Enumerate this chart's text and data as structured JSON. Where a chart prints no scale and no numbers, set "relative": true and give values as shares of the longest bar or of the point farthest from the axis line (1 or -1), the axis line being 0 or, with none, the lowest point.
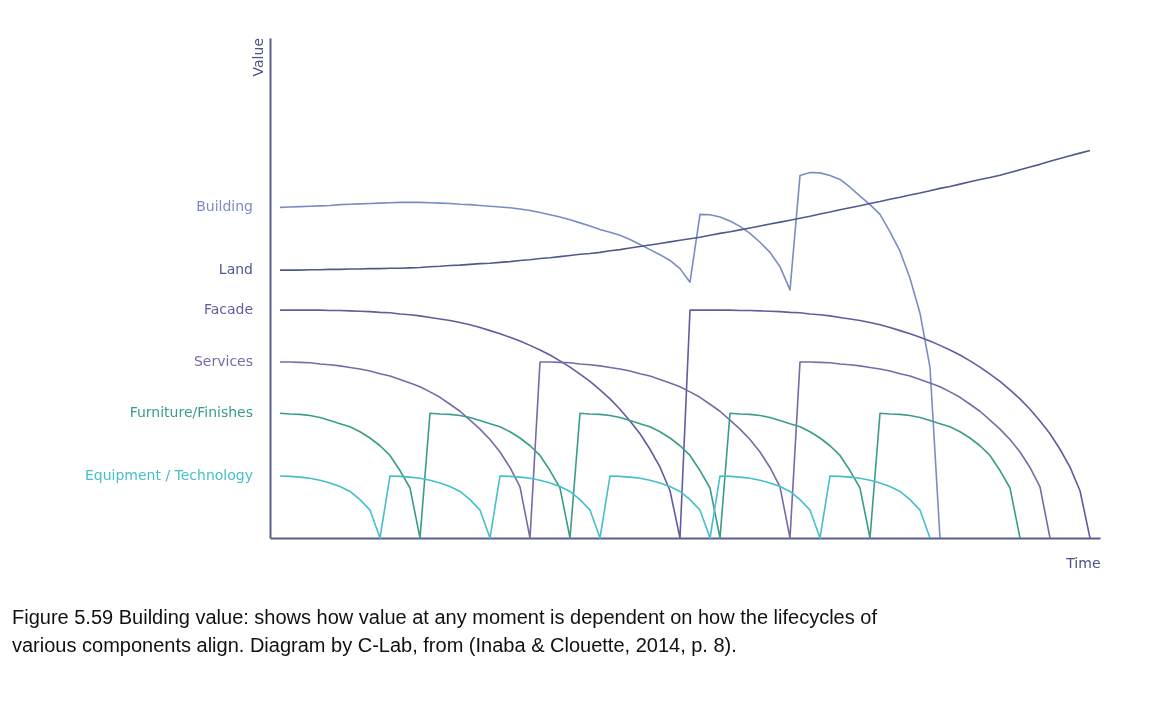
{
  "chart_data": {
    "type": "line",
    "relative": true,
    "xlabel": "Time",
    "categories": [
      null,
      null,
      null,
      null,
      null,
      null,
      null,
      null,
      null,
      null,
      null,
      null,
      null,
      null,
      null,
      null,
      null,
      null,
      null,
      null,
      null,
      null,
      null,
      null,
      null,
      null,
      null,
      null,
      null,
      null,
      null,
      null,
      null,
      null,
      null,
      null,
      null,
      null,
      null,
      null,
      null,
      null,
      null,
      null,
      null,
      null,
      null,
      null,
      null,
      null,
      null,
      null,
      null,
      null,
      null,
      null,
      null,
      null,
      null,
      null,
      null,
      null,
      null,
      null,
      null,
      null,
      null,
      null,
      null,
      null,
      null,
      null,
      null,
      null,
      null,
      null,
      null,
      null,
      null,
      null,
      null,
      null
    ],
    "series": [
      {
        "name": "Building",
        "color": "#7a8cc6",
        "values": [
          0.853,
          0.854,
          0.855,
          0.856,
          0.857,
          0.858,
          0.86,
          0.861,
          0.862,
          0.863,
          0.864,
          0.865,
          0.866,
          0.866,
          0.866,
          0.865,
          0.864,
          0.863,
          0.861,
          0.86,
          0.858,
          0.856,
          0.854,
          0.852,
          0.849,
          0.845,
          0.84,
          0.834,
          0.828,
          0.821,
          0.813,
          0.805,
          0.796,
          0.789,
          0.781,
          0.77,
          0.757,
          0.744,
          0.731,
          0.716,
          0.695,
          0.66,
          0.835,
          0.834,
          0.828,
          0.818,
          0.804,
          0.786,
          0.763,
          0.737,
          0.7,
          0.64,
          0.935,
          0.943,
          0.942,
          0.935,
          0.925,
          0.905,
          0.882,
          0.86,
          0.835,
          0.79,
          0.74,
          0.67,
          0.58,
          0.44,
          0,
          null,
          null,
          null,
          null,
          null,
          null,
          null,
          null,
          null,
          null,
          null,
          null,
          null,
          null,
          null
        ]
      },
      {
        "name": "Land",
        "color": "#4f5a8c",
        "values": [
          0.691,
          0.691,
          0.691,
          0.692,
          0.692,
          0.693,
          0.693,
          0.694,
          0.694,
          0.695,
          0.695,
          0.696,
          0.696,
          0.697,
          0.698,
          0.7,
          0.701,
          0.703,
          0.704,
          0.706,
          0.708,
          0.709,
          0.711,
          0.713,
          0.716,
          0.718,
          0.721,
          0.723,
          0.726,
          0.729,
          0.732,
          0.734,
          0.737,
          0.741,
          0.744,
          0.748,
          0.752,
          0.756,
          0.76,
          0.764,
          0.768,
          0.772,
          0.776,
          0.781,
          0.786,
          0.79,
          0.795,
          0.8,
          0.805,
          0.81,
          0.815,
          0.82,
          0.825,
          0.83,
          0.836,
          0.841,
          0.847,
          0.852,
          0.857,
          0.863,
          0.868,
          0.874,
          0.879,
          0.885,
          0.89,
          0.896,
          0.902,
          0.907,
          0.913,
          0.919,
          0.925,
          0.93,
          0.936,
          0.943,
          0.95,
          0.957,
          0.964,
          0.972,
          0.979,
          0.986,
          0.993,
          1.0
        ]
      },
      {
        "name": "Facade",
        "color": "#665a9e",
        "values": [
          0.588,
          0.588,
          0.588,
          0.588,
          0.588,
          0.587,
          0.587,
          0.586,
          0.585,
          0.584,
          0.582,
          0.581,
          0.578,
          0.576,
          0.573,
          0.569,
          0.565,
          0.561,
          0.556,
          0.55,
          0.543,
          0.535,
          0.527,
          0.518,
          0.508,
          0.497,
          0.485,
          0.472,
          0.457,
          0.441,
          0.423,
          0.404,
          0.382,
          0.359,
          0.332,
          0.302,
          0.269,
          0.229,
          0.183,
          0.122,
          0,
          0.588,
          0.588,
          0.588,
          0.588,
          0.588,
          0.587,
          0.587,
          0.586,
          0.585,
          0.584,
          0.582,
          0.581,
          0.578,
          0.576,
          0.573,
          0.569,
          0.565,
          0.561,
          0.556,
          0.55,
          0.543,
          0.535,
          0.527,
          0.518,
          0.508,
          0.497,
          0.485,
          0.472,
          0.457,
          0.441,
          0.423,
          0.404,
          0.382,
          0.359,
          0.332,
          0.302,
          0.269,
          0.229,
          0.183,
          0.122,
          0
        ]
      },
      {
        "name": "Services",
        "color": "#7b68a8",
        "values": [
          0.454,
          0.454,
          0.453,
          0.452,
          0.449,
          0.447,
          0.444,
          0.44,
          0.436,
          0.431,
          0.424,
          0.418,
          0.409,
          0.4,
          0.39,
          0.377,
          0.363,
          0.345,
          0.327,
          0.304,
          0.281,
          0.254,
          0.222,
          0.182,
          0.132,
          0,
          0.454,
          0.454,
          0.453,
          0.452,
          0.449,
          0.447,
          0.444,
          0.44,
          0.436,
          0.431,
          0.424,
          0.418,
          0.409,
          0.4,
          0.39,
          0.377,
          0.363,
          0.345,
          0.327,
          0.304,
          0.281,
          0.254,
          0.222,
          0.182,
          0.132,
          0,
          0.454,
          0.454,
          0.453,
          0.452,
          0.449,
          0.447,
          0.444,
          0.44,
          0.436,
          0.431,
          0.424,
          0.418,
          0.409,
          0.4,
          0.39,
          0.377,
          0.363,
          0.345,
          0.327,
          0.304,
          0.281,
          0.254,
          0.222,
          0.182,
          0.132,
          0,
          null,
          null,
          null,
          null
        ]
      },
      {
        "name": "Furniture/Finishes",
        "color": "#3a9c8a",
        "values": [
          0.322,
          0.32,
          0.319,
          0.316,
          0.311,
          0.303,
          0.295,
          0.287,
          0.274,
          0.258,
          0.238,
          0.213,
          0.174,
          0.129,
          0,
          0.322,
          0.32,
          0.319,
          0.316,
          0.311,
          0.303,
          0.295,
          0.287,
          0.274,
          0.258,
          0.238,
          0.213,
          0.174,
          0.129,
          0,
          0.322,
          0.32,
          0.319,
          0.316,
          0.311,
          0.303,
          0.295,
          0.287,
          0.274,
          0.258,
          0.238,
          0.213,
          0.174,
          0.129,
          0,
          0.322,
          0.32,
          0.319,
          0.316,
          0.311,
          0.303,
          0.295,
          0.287,
          0.274,
          0.258,
          0.238,
          0.213,
          0.174,
          0.129,
          0,
          0.322,
          0.32,
          0.319,
          0.316,
          0.311,
          0.303,
          0.295,
          0.287,
          0.274,
          0.258,
          0.238,
          0.213,
          0.174,
          0.129,
          0,
          null,
          null,
          null,
          null,
          null,
          null,
          null
        ]
      },
      {
        "name": "Equipment / Technology",
        "color": "#45bfcb",
        "values": [
          0.16,
          0.159,
          0.157,
          0.154,
          0.149,
          0.142,
          0.133,
          0.12,
          0.099,
          0.072,
          0,
          0.16,
          0.159,
          0.157,
          0.154,
          0.149,
          0.142,
          0.133,
          0.12,
          0.099,
          0.072,
          0,
          0.16,
          0.159,
          0.157,
          0.154,
          0.149,
          0.142,
          0.133,
          0.12,
          0.099,
          0.072,
          0,
          0.16,
          0.159,
          0.157,
          0.154,
          0.149,
          0.142,
          0.133,
          0.12,
          0.099,
          0.072,
          0,
          0.16,
          0.159,
          0.157,
          0.154,
          0.149,
          0.142,
          0.133,
          0.12,
          0.099,
          0.072,
          0,
          0.16,
          0.159,
          0.157,
          0.154,
          0.149,
          0.142,
          0.133,
          0.12,
          0.099,
          0.072,
          0,
          null,
          null,
          null,
          null,
          null,
          null,
          null,
          null,
          null,
          null,
          null,
          null,
          null,
          null,
          null,
          null
        ]
      }
    ],
    "annotations": [
      "Value",
      "Figure 5.59 Building value: shows how value at any moment is dependent on how the lifecycles of various components align. Diagram by C-Lab, from (Inaba & Clouette, 2014, p. 8)."
    ]
  }
}
